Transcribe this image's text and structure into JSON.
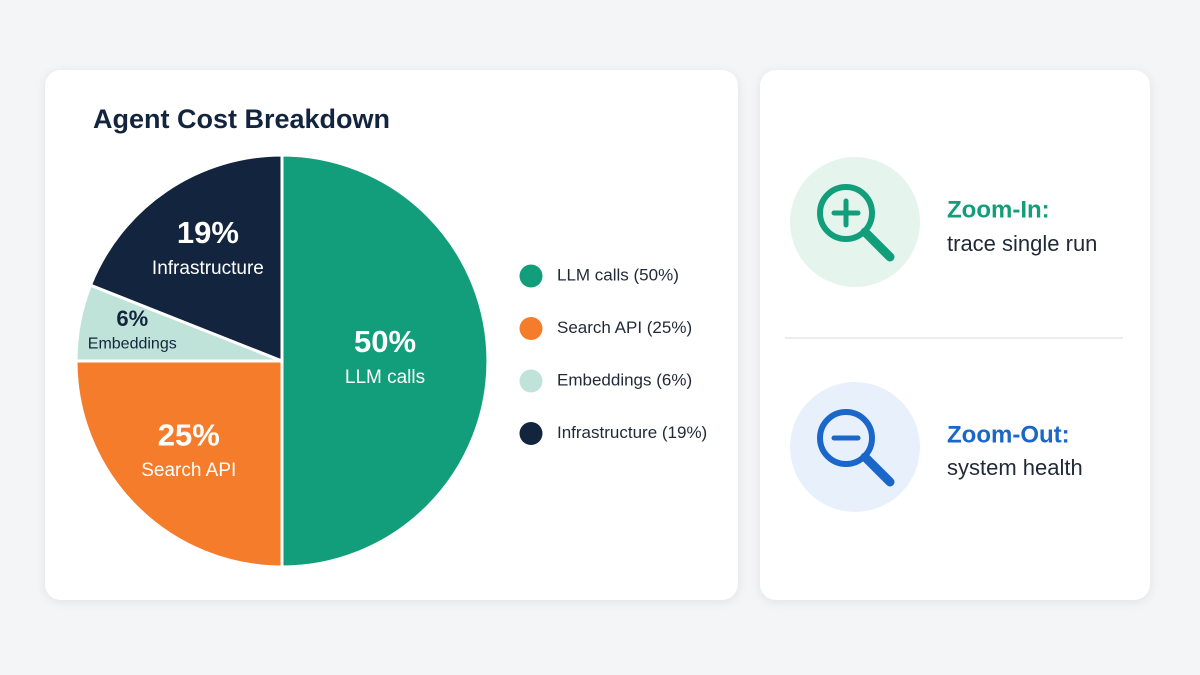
{
  "chart_data": {
    "type": "pie",
    "title": "Agent Cost Breakdown",
    "categories": [
      "LLM calls",
      "Search API",
      "Embeddings",
      "Infrastructure"
    ],
    "values": [
      50,
      25,
      6,
      19
    ],
    "value_labels": [
      "50%",
      "25%",
      "6%",
      "19%"
    ],
    "legend_labels": [
      "LLM calls (50%)",
      "Search API (25%)",
      "Embeddings (6%)",
      "Infrastructure (19%)"
    ],
    "colors": [
      "#129e7a",
      "#f47c2a",
      "#bfe3d8",
      "#13253e"
    ]
  },
  "side_panel": {
    "items": [
      {
        "title": "Zoom-In:",
        "subtitle": "trace single run"
      },
      {
        "title": "Zoom-Out:",
        "subtitle": "system health"
      }
    ]
  }
}
